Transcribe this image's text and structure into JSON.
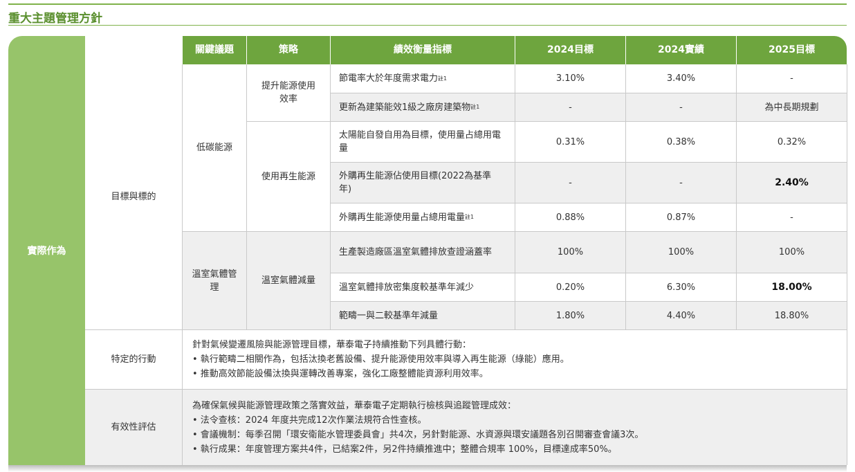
{
  "page_title": "重大主題管理方針",
  "side_label": "實際作為",
  "headers": [
    "關鍵議題",
    "策略",
    "績效衡量指標",
    "2024目標",
    "2024實績",
    "2025目標"
  ],
  "section_label": "目標與標的",
  "topics": [
    "低碳能源",
    "溫室氣體管理"
  ],
  "strategies": [
    "提升能源使用效率",
    "使用再生能源",
    "溫室氣體減量"
  ],
  "rows": [
    {
      "indicator": "節電率大於年度需求電力",
      "note": "註1",
      "t2024": "3.10%",
      "a2024": "3.40%",
      "t2025": "-"
    },
    {
      "indicator": "更新為建築能效1級之廠房建築物",
      "note": "註1",
      "t2024": "-",
      "a2024": "-",
      "t2025": "為中長期規劃"
    },
    {
      "indicator": "太陽能自發自用為目標，使用量占總用電量",
      "note": "",
      "t2024": "0.31%",
      "a2024": "0.38%",
      "t2025": "0.32%"
    },
    {
      "indicator": "外購再生能源佔使用目標(2022為基準年)",
      "note": "",
      "t2024": "-",
      "a2024": "-",
      "t2025": "2.40%"
    },
    {
      "indicator": "外購再生能源使用量占總用電量",
      "note": "註1",
      "t2024": "0.88%",
      "a2024": "0.87%",
      "t2025": "-"
    },
    {
      "indicator": "生產製造廠區溫室氣體排放查證涵蓋率",
      "note": "",
      "t2024": "100%",
      "a2024": "100%",
      "t2025": "100%"
    },
    {
      "indicator": "溫室氣體排放密集度較基準年減少",
      "note": "",
      "t2024": "0.20%",
      "a2024": "6.30%",
      "t2025": "18.00%"
    },
    {
      "indicator": "範疇一與二較基準年減量",
      "note": "",
      "t2024": "1.80%",
      "a2024": "4.40%",
      "t2025": "18.80%"
    }
  ],
  "specific_actions": {
    "label": "特定的行動",
    "intro": "針對氣候變遷風險與能源管理目標，華泰電子持續推動下列具體行動：",
    "bullets": [
      "• 執行範疇二相關作為，包括汰換老舊設備、提升能源使用效率與導入再生能源（綠能）應用。",
      "• 推動高效節能設備汰換與運轉改善專案，強化工廠整體能資源利用效率。"
    ]
  },
  "effectiveness": {
    "label": "有效性評估",
    "intro": "為確保氣候與能源管理政策之落實效益，華泰電子定期執行檢核與追蹤管理成效：",
    "bullets": [
      "• 法令查核：2024 年度共完成12次作業法規符合性查核。",
      "• 會議機制：每季召開「環安衛能水管理委員會」共4次，另針對能源、水資源與環安議題各別召開審查會議3次。",
      "• 執行成果：年度管理方案共4件，已結案2件，另2件持續推進中；整體合規率 100%，目標達成率50%。"
    ]
  },
  "colors": {
    "header_green": "#6ea53e",
    "side_green": "#97c46a",
    "title_green": "#5a8f2e",
    "row_gray": "#efefef"
  }
}
